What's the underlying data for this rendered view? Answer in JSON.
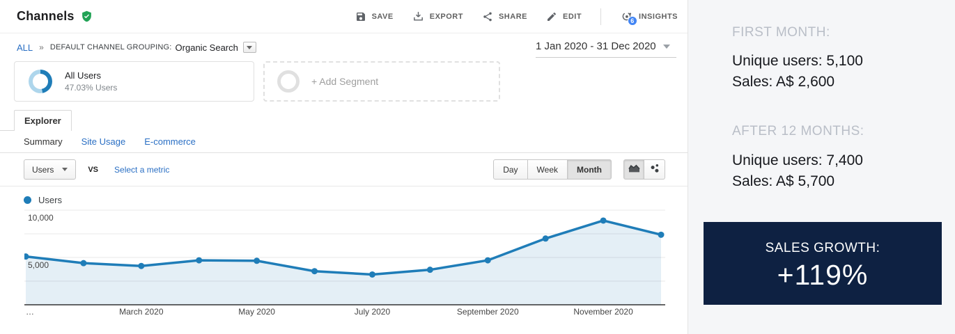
{
  "header": {
    "title": "Channels",
    "verified_icon": "shield-check",
    "actions": [
      {
        "id": "save",
        "label": "SAVE",
        "icon": "floppy-icon"
      },
      {
        "id": "export",
        "label": "EXPORT",
        "icon": "download-icon"
      },
      {
        "id": "share",
        "label": "SHARE",
        "icon": "share-icon"
      },
      {
        "id": "edit",
        "label": "EDIT",
        "icon": "pencil-icon"
      },
      {
        "id": "insights",
        "label": "INSIGHTS",
        "icon": "insights-icon",
        "badge": "6"
      }
    ]
  },
  "breadcrumb": {
    "root": "ALL",
    "separator": "»",
    "grouping_label": "DEFAULT CHANNEL GROUPING:",
    "grouping_value": "Organic Search"
  },
  "date_range": {
    "value": "1 Jan 2020 - 31 Dec 2020"
  },
  "segments": {
    "all_users": {
      "title": "All Users",
      "subtitle": "47.03% Users",
      "donut_pct": 47.03
    },
    "add": {
      "label": "+ Add Segment"
    }
  },
  "tabs": {
    "explorer": "Explorer",
    "subtabs": [
      {
        "label": "Summary",
        "active": true
      },
      {
        "label": "Site Usage",
        "active": false
      },
      {
        "label": "E-commerce",
        "active": false
      }
    ]
  },
  "metric_bar": {
    "metric_button": "Users",
    "vs_label": "VS",
    "compare_link": "Select a metric",
    "granularity": [
      "Day",
      "Week",
      "Month"
    ],
    "granularity_active": "Month"
  },
  "legend": {
    "label": "Users"
  },
  "chart_data": {
    "type": "area",
    "title": "Users by month, Organic Search, 2020",
    "x": [
      "Jan 2020",
      "Feb 2020",
      "Mar 2020",
      "Apr 2020",
      "May 2020",
      "Jun 2020",
      "Jul 2020",
      "Aug 2020",
      "Sep 2020",
      "Oct 2020",
      "Nov 2020",
      "Dec 2020"
    ],
    "series": [
      {
        "name": "Users",
        "color": "#1f7db8",
        "fill": "rgba(31,125,184,0.12)",
        "values": [
          5100,
          4400,
          4100,
          4700,
          4650,
          3550,
          3200,
          3700,
          4700,
          7000,
          8900,
          7400
        ]
      }
    ],
    "ylim": [
      0,
      10000
    ],
    "gridlines": [
      2500,
      5000,
      7500,
      10000
    ],
    "yticks": [
      {
        "v": 10000,
        "label": "10,000"
      },
      {
        "v": 5000,
        "label": "5,000"
      }
    ],
    "xticks": [
      {
        "i": 0,
        "label": "…"
      },
      {
        "i": 2,
        "label": "March 2020"
      },
      {
        "i": 4,
        "label": "May 2020"
      },
      {
        "i": 6,
        "label": "July 2020"
      },
      {
        "i": 8,
        "label": "September 2020"
      },
      {
        "i": 10,
        "label": "November 2020"
      }
    ],
    "grid": true,
    "legend_position": "top-left"
  },
  "side_panel": {
    "first_month": {
      "heading": "FIRST MONTH:",
      "users": "Unique users: 5,100",
      "sales": "Sales: A$ 2,600"
    },
    "after_12_months": {
      "heading": "AFTER 12 MONTHS:",
      "users": "Unique users: 7,400",
      "sales": "Sales: A$ 5,700"
    },
    "growth_box": {
      "heading": "SALES GROWTH:",
      "value": "+119%",
      "bg": "#0e2142"
    }
  },
  "colors": {
    "chart_line": "#1f7db8",
    "link_blue": "#2a6fc4",
    "panel_bg": "#f5f6f8",
    "badge_blue": "#4285f4",
    "verified_green": "#22a356"
  }
}
